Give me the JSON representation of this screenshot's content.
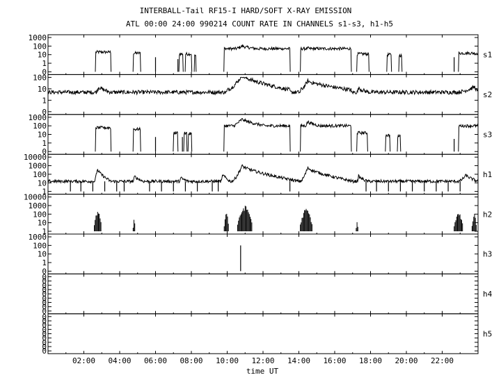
{
  "chart_data": {
    "type": "line",
    "title": "INTERBALL-Tail RF15-I HARD/SOFT X-RAY EMISSION",
    "subtitle": "ATL 00:00 24:00 990214  COUNT RATE IN CHANNELS s1-s3, h1-h5",
    "xlabel": "time UT",
    "x_range": [
      "00:00",
      "24:00"
    ],
    "x_ticks": [
      "02:00",
      "04:00",
      "06:00",
      "08:00",
      "10:00",
      "12:00",
      "14:00",
      "16:00",
      "18:00",
      "20:00",
      "22:00"
    ],
    "y_scale": "log",
    "grid": false,
    "panels": [
      {
        "name": "s1",
        "y_tick_labels": [
          "1000",
          "100",
          "10",
          "1",
          "0"
        ],
        "baseline": 0,
        "segments": [
          [
            "02:40",
            "03:30",
            20
          ],
          [
            "04:45",
            "05:10",
            15
          ],
          [
            "07:20",
            "07:32",
            12
          ],
          [
            "07:40",
            "08:00",
            12
          ],
          [
            "08:10",
            "08:15",
            8
          ],
          [
            "09:50",
            "13:30",
            50
          ],
          [
            "14:05",
            "16:55",
            50
          ],
          [
            "17:15",
            "17:55",
            12
          ],
          [
            "18:55",
            "19:10",
            10
          ],
          [
            "19:35",
            "19:45",
            8
          ],
          [
            "22:55",
            "24:00",
            15
          ]
        ],
        "flares": [
          {
            "start": "09:50",
            "peak": "10:50",
            "end": "13:30",
            "base": 20,
            "peak_value": 100
          },
          {
            "start": "14:05",
            "peak": "14:30",
            "end": "16:55",
            "base": 10,
            "peak_value": 60
          }
        ],
        "spikes": [
          {
            "t": "06:00",
            "value": 5
          },
          {
            "t": "07:15",
            "value": 3
          },
          {
            "t": "22:40",
            "value": 5
          }
        ]
      },
      {
        "name": "s2",
        "y_tick_labels": [
          "100",
          "10",
          "1",
          "0"
        ],
        "baseline": 5,
        "segments": [],
        "flares": [
          {
            "start": "02:40",
            "peak": "02:50",
            "end": "03:30",
            "base": 5,
            "peak_value": 15
          },
          {
            "start": "10:00",
            "peak": "10:50",
            "end": "13:30",
            "base": 8,
            "peak_value": 150
          },
          {
            "start": "14:05",
            "peak": "14:30",
            "end": "16:55",
            "base": 8,
            "peak_value": 50
          },
          {
            "start": "17:15",
            "peak": "17:20",
            "end": "17:55",
            "base": 5,
            "peak_value": 12
          },
          {
            "start": "22:50",
            "peak": "23:50",
            "end": "24:00",
            "base": 5,
            "peak_value": 15
          }
        ],
        "spikes": []
      },
      {
        "name": "s3",
        "y_tick_labels": [
          "1000",
          "100",
          "10",
          "1",
          "0"
        ],
        "baseline": 0,
        "segments": [
          [
            "02:40",
            "03:30",
            60
          ],
          [
            "04:45",
            "05:10",
            40
          ],
          [
            "07:00",
            "07:15",
            15
          ],
          [
            "07:35",
            "07:45",
            15
          ],
          [
            "07:50",
            "08:00",
            12
          ],
          [
            "09:50",
            "13:30",
            100
          ],
          [
            "14:05",
            "16:55",
            100
          ],
          [
            "17:15",
            "17:50",
            15
          ],
          [
            "18:50",
            "19:05",
            8
          ],
          [
            "19:30",
            "19:40",
            6
          ],
          [
            "22:55",
            "24:00",
            100
          ]
        ],
        "flares": [
          {
            "start": "09:50",
            "peak": "10:50",
            "end": "13:30",
            "base": 30,
            "peak_value": 600
          },
          {
            "start": "14:05",
            "peak": "14:30",
            "end": "16:55",
            "base": 20,
            "peak_value": 300
          }
        ],
        "spikes": [
          {
            "t": "06:00",
            "value": 5
          },
          {
            "t": "07:30",
            "value": 5
          },
          {
            "t": "22:40",
            "value": 3
          }
        ]
      },
      {
        "name": "h1",
        "y_tick_labels": [
          "10000",
          "1000",
          "100",
          "10",
          "1"
        ],
        "baseline": 15,
        "segments": [],
        "flares": [
          {
            "start": "02:35",
            "peak": "02:45",
            "end": "03:30",
            "base": 15,
            "peak_value": 400
          },
          {
            "start": "04:45",
            "peak": "04:50",
            "end": "05:20",
            "base": 15,
            "peak_value": 60
          },
          {
            "start": "07:20",
            "peak": "07:25",
            "end": "07:50",
            "base": 15,
            "peak_value": 40
          },
          {
            "start": "09:40",
            "peak": "09:45",
            "end": "10:10",
            "base": 15,
            "peak_value": 100
          },
          {
            "start": "10:15",
            "peak": "10:50",
            "end": "14:00",
            "base": 15,
            "peak_value": 1000
          },
          {
            "start": "14:05",
            "peak": "14:30",
            "end": "17:00",
            "base": 15,
            "peak_value": 600
          },
          {
            "start": "17:15",
            "peak": "17:20",
            "end": "17:50",
            "base": 15,
            "peak_value": 60
          },
          {
            "start": "22:55",
            "peak": "23:20",
            "end": "24:00",
            "base": 15,
            "peak_value": 80
          }
        ],
        "spikes": [
          {
            "t": "01:15",
            "value": 1
          },
          {
            "t": "01:50",
            "value": 1
          },
          {
            "t": "02:30",
            "value": 1
          },
          {
            "t": "03:10",
            "value": 1
          },
          {
            "t": "03:50",
            "value": 1
          },
          {
            "t": "04:15",
            "value": 1
          },
          {
            "t": "05:40",
            "value": 1
          },
          {
            "t": "06:20",
            "value": 1
          },
          {
            "t": "07:00",
            "value": 1
          },
          {
            "t": "07:40",
            "value": 1
          },
          {
            "t": "08:20",
            "value": 1
          },
          {
            "t": "09:10",
            "value": 1
          },
          {
            "t": "09:30",
            "value": 1
          },
          {
            "t": "13:30",
            "value": 1
          },
          {
            "t": "17:45",
            "value": 1
          },
          {
            "t": "18:20",
            "value": 1
          },
          {
            "t": "19:00",
            "value": 1
          },
          {
            "t": "19:40",
            "value": 1
          },
          {
            "t": "20:20",
            "value": 1
          },
          {
            "t": "21:00",
            "value": 1
          },
          {
            "t": "21:40",
            "value": 1
          },
          {
            "t": "22:20",
            "value": 1
          },
          {
            "t": "23:00",
            "value": 1
          }
        ]
      },
      {
        "name": "h2",
        "y_tick_labels": [
          "10000",
          "1000",
          "100",
          "10",
          "1"
        ],
        "baseline": 12,
        "steps": [
          [
            "00:00",
            12
          ],
          [
            "01:20",
            25
          ],
          [
            "02:35",
            0
          ],
          [
            "03:30",
            12
          ],
          [
            "04:00",
            10
          ],
          [
            "04:45",
            0
          ],
          [
            "05:10",
            3
          ],
          [
            "05:45",
            5
          ],
          [
            "06:40",
            8
          ],
          [
            "07:10",
            12
          ],
          [
            "08:20",
            15
          ],
          [
            "09:40",
            25
          ],
          [
            "09:50",
            0
          ],
          [
            "13:30",
            25
          ],
          [
            "14:05",
            0
          ],
          [
            "17:15",
            8
          ],
          [
            "18:30",
            12
          ],
          [
            "19:30",
            8
          ],
          [
            "21:00",
            12
          ],
          [
            "22:40",
            0
          ],
          [
            "24:00",
            0
          ]
        ],
        "bursts": [
          {
            "start": "02:35",
            "end": "03:00",
            "peak_value": 300
          },
          {
            "start": "04:45",
            "end": "04:52",
            "peak_value": 30
          },
          {
            "start": "09:50",
            "end": "10:05",
            "peak_value": 200
          },
          {
            "start": "10:35",
            "end": "11:25",
            "peak_value": 1000
          },
          {
            "start": "14:05",
            "end": "14:45",
            "peak_value": 500
          },
          {
            "start": "17:12",
            "end": "17:18",
            "peak_value": 20
          },
          {
            "start": "22:40",
            "end": "23:10",
            "peak_value": 150
          },
          {
            "start": "23:40",
            "end": "23:55",
            "peak_value": 120
          }
        ]
      },
      {
        "name": "h3",
        "y_tick_labels": [
          "1000",
          "100",
          "10",
          "1",
          "0"
        ],
        "baseline": 0,
        "segments": [],
        "flares": [],
        "spikes": [
          {
            "t": "10:45",
            "value": 100
          }
        ]
      },
      {
        "name": "h4",
        "y_tick_labels": [
          "0",
          "0",
          "0",
          "0",
          "0",
          "0",
          "0",
          "0",
          "0"
        ],
        "baseline": 0,
        "segments": [],
        "flares": [],
        "spikes": []
      },
      {
        "name": "h5",
        "y_tick_labels": [
          "0",
          "0",
          "0",
          "0",
          "0",
          "0",
          "0",
          "0",
          "0"
        ],
        "baseline": 0,
        "segments": [],
        "flares": [],
        "spikes": []
      }
    ]
  }
}
